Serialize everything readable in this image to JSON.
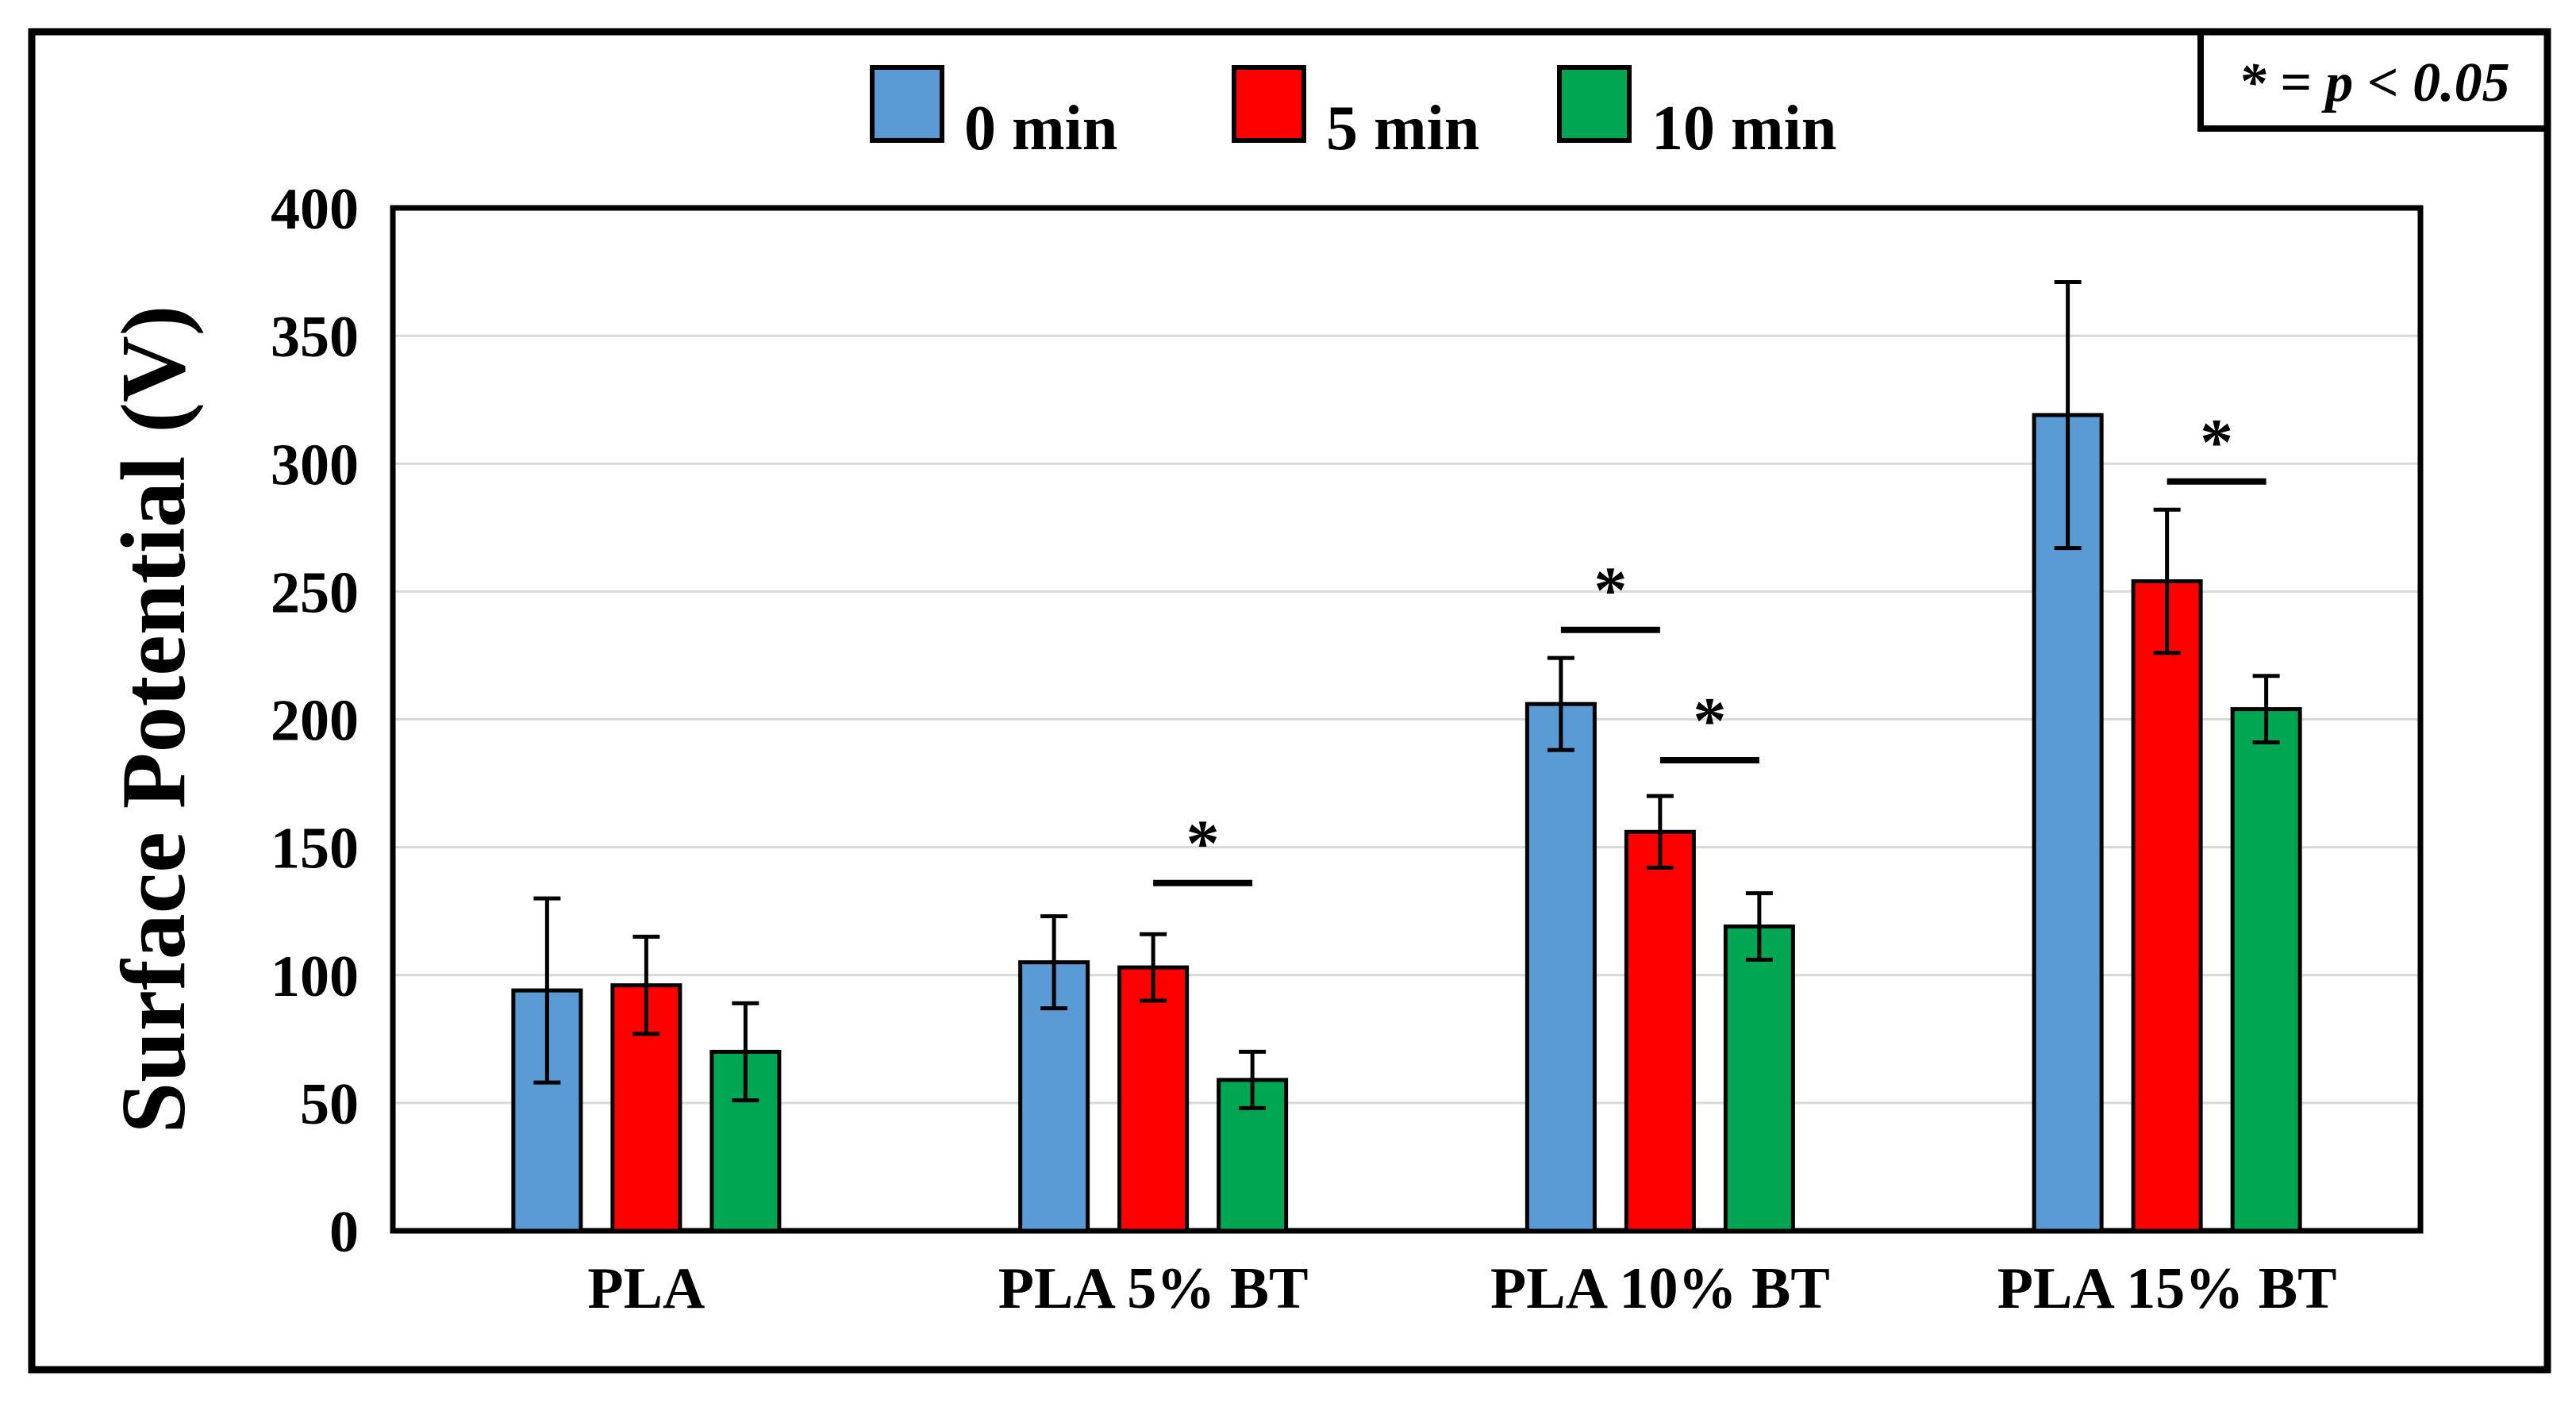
{
  "figure": {
    "background": "#FFFFFF",
    "frame_color": "#000000",
    "annotation_box": {
      "text": "* = p < 0.05"
    }
  },
  "chart_data": {
    "type": "bar",
    "title": "",
    "xlabel": "",
    "ylabel": "Surface Potential (V)",
    "ylim": [
      0,
      400
    ],
    "ytick_step": 50,
    "yticks": [
      0,
      50,
      100,
      150,
      200,
      250,
      300,
      350,
      400
    ],
    "grid": true,
    "gridline_color": "#D9D9D9",
    "axis_color": "#000000",
    "legend_position": "top-center",
    "annotation": "* = p < 0.05",
    "categories": [
      "PLA",
      "PLA 5% BT",
      "PLA 10% BT",
      "PLA 15% BT"
    ],
    "series": [
      {
        "name": "0 min",
        "color": "#5B9BD5",
        "values": [
          94,
          105,
          206,
          319
        ],
        "errors": [
          36,
          18,
          18,
          52
        ]
      },
      {
        "name": "5 min",
        "color": "#FF0000",
        "values": [
          96,
          103,
          156,
          254
        ],
        "errors": [
          19,
          13,
          14,
          28
        ]
      },
      {
        "name": "10 min",
        "color": "#00A651",
        "values": [
          70,
          59,
          119,
          204
        ],
        "errors": [
          19,
          11,
          13,
          13
        ]
      }
    ],
    "significance_brackets": [
      {
        "category": 1,
        "from_series": 1,
        "to_series": 2,
        "y": 136,
        "label": "*"
      },
      {
        "category": 2,
        "from_series": 0,
        "to_series": 1,
        "y": 235,
        "label": "*"
      },
      {
        "category": 2,
        "from_series": 1,
        "to_series": 2,
        "y": 184,
        "label": "*"
      },
      {
        "category": 3,
        "from_series": 1,
        "to_series": 2,
        "y": 293,
        "label": "*"
      }
    ]
  }
}
